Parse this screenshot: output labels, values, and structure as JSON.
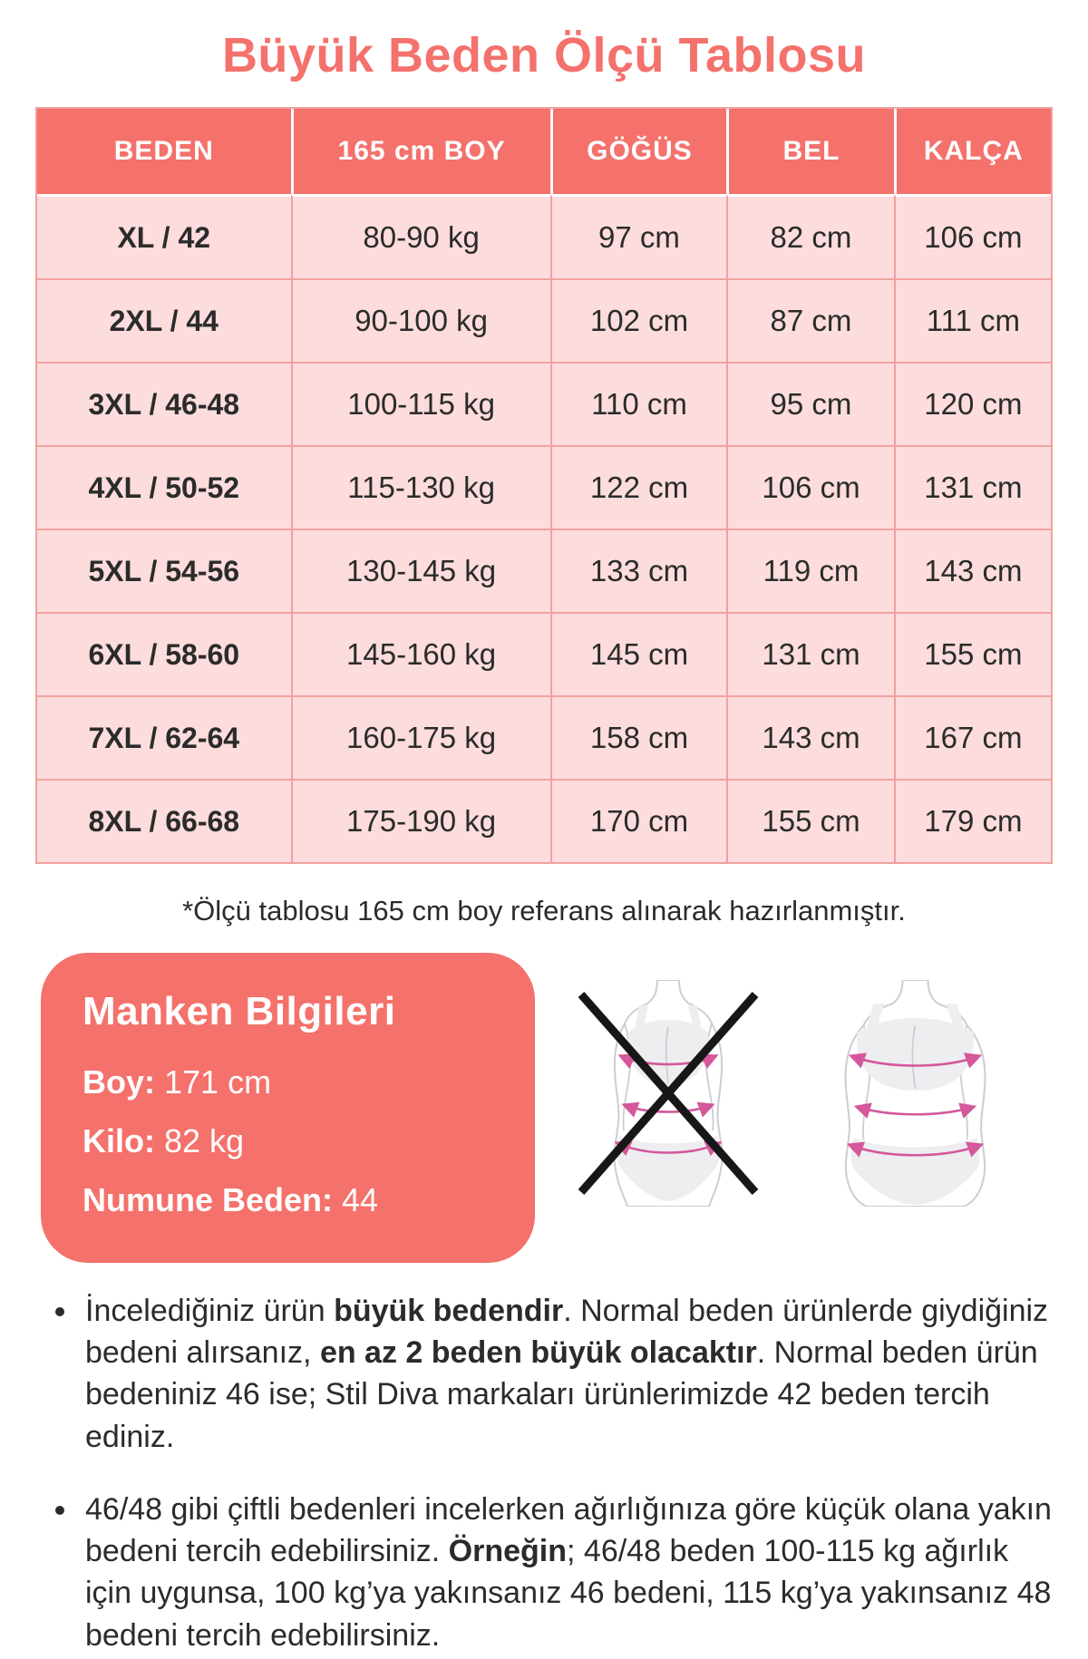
{
  "colors": {
    "accent": "#F4716C",
    "row_bg": "#FCDCDC",
    "table_border": "#F0A2A0",
    "text": "#2B2B2B",
    "measure_line": "#D4589B",
    "silhouette_outline": "#CDCDD3",
    "silhouette_fill": "#EEEEF1",
    "cross": "#171717"
  },
  "title": "Büyük Beden Ölçü Tablosu",
  "table": {
    "headers": [
      "BEDEN",
      "165 cm BOY",
      "GÖĞÜS",
      "BEL",
      "KALÇA"
    ],
    "rows": [
      [
        "XL / 42",
        "80-90 kg",
        "97 cm",
        "82 cm",
        "106 cm"
      ],
      [
        "2XL / 44",
        "90-100 kg",
        "102 cm",
        "87 cm",
        "111 cm"
      ],
      [
        "3XL / 46-48",
        "100-115 kg",
        "110 cm",
        "95 cm",
        "120 cm"
      ],
      [
        "4XL / 50-52",
        "115-130 kg",
        "122 cm",
        "106 cm",
        "131 cm"
      ],
      [
        "5XL / 54-56",
        "130-145 kg",
        "133 cm",
        "119 cm",
        "143 cm"
      ],
      [
        "6XL / 58-60",
        "145-160 kg",
        "145 cm",
        "131 cm",
        "155 cm"
      ],
      [
        "7XL / 62-64",
        "160-175 kg",
        "158 cm",
        "143 cm",
        "167 cm"
      ],
      [
        "8XL / 66-68",
        "175-190 kg",
        "170 cm",
        "155 cm",
        "179 cm"
      ]
    ]
  },
  "note": "*Ölçü tablosu 165 cm boy referans alınarak hazırlanmıştır.",
  "model_info": {
    "title": "Manken Bilgileri",
    "separator": ": ",
    "fields": [
      {
        "label": "Boy",
        "value": "171 cm"
      },
      {
        "label": "Kilo",
        "value": "82 kg"
      },
      {
        "label": "Numune Beden",
        "value": "44"
      }
    ]
  },
  "icons": {
    "wrong_figure": "crossed-out-slim-body-measurement-figure",
    "correct_figure": "plus-size-body-measurement-figure"
  },
  "bullets": [
    {
      "segments": [
        {
          "text": "İncelediğiniz ürün ",
          "bold": false
        },
        {
          "text": "büyük bedendir",
          "bold": true
        },
        {
          "text": ". Normal beden ürünlerde giydiğiniz bedeni alırsanız, ",
          "bold": false
        },
        {
          "text": "en az 2 beden büyük olacaktır",
          "bold": true
        },
        {
          "text": ". Normal beden ürün bedeniniz 46 ise; Stil Diva markaları ürünlerimizde 42 beden tercih ediniz.",
          "bold": false
        }
      ]
    },
    {
      "segments": [
        {
          "text": "46/48 gibi çiftli bedenleri incelerken ağırlığınıza göre küçük olana yakın bedeni tercih edebilirsiniz. ",
          "bold": false
        },
        {
          "text": "Örneğin",
          "bold": true
        },
        {
          "text": "; 46/48 beden 100-115 kg ağırlık için uygunsa, 100 kg’ya yakınsanız 46 bedeni, 115 kg’ya yakınsanız 48 bedeni tercih edebilirsiniz.",
          "bold": false
        }
      ]
    }
  ]
}
